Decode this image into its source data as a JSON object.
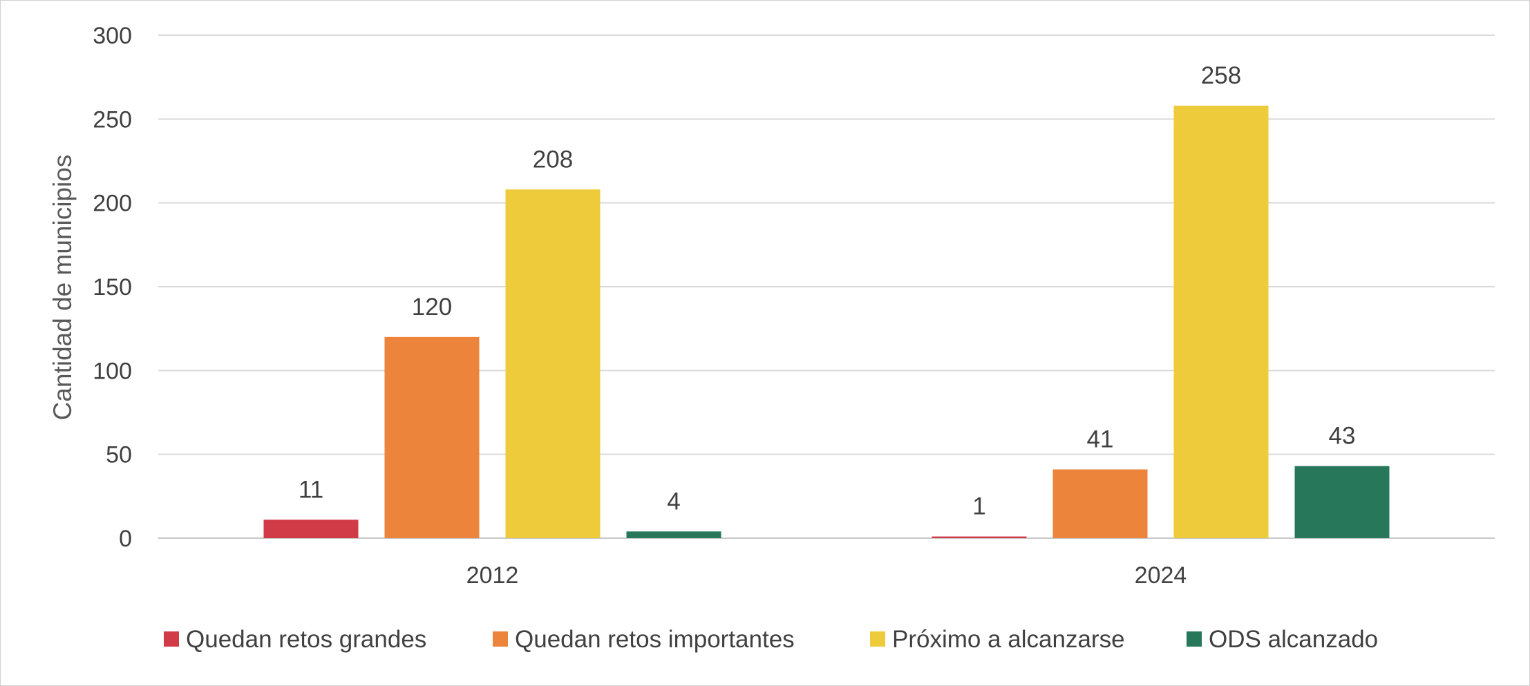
{
  "chart_data": {
    "type": "bar",
    "title": "",
    "ylabel": "Cantidad de municipios",
    "xlabel": "",
    "ylim": [
      0,
      300
    ],
    "yticks": [
      0,
      50,
      100,
      150,
      200,
      250,
      300
    ],
    "grid": true,
    "legend_position": "bottom",
    "categories": [
      "2012",
      "2024"
    ],
    "series": [
      {
        "name": "Quedan retos grandes",
        "color": "#d13a47",
        "values": [
          11,
          1
        ]
      },
      {
        "name": "Quedan retos importantes",
        "color": "#ec843b",
        "values": [
          120,
          41
        ]
      },
      {
        "name": "Próximo a alcanzarse",
        "color": "#eecb3b",
        "values": [
          208,
          258
        ]
      },
      {
        "name": "ODS alcanzado",
        "color": "#27775a",
        "values": [
          4,
          43
        ]
      }
    ]
  }
}
